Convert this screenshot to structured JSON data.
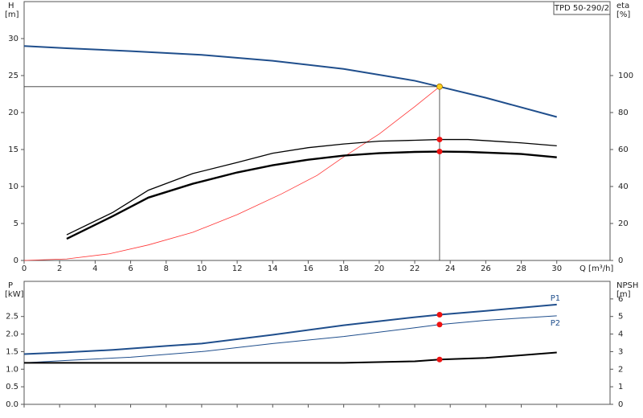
{
  "chart_data": [
    {
      "type": "line",
      "title": "TPD 50-290/2",
      "ylabel": "H",
      "yunit": "[m]",
      "y2label": "eta",
      "y2unit": "[%]",
      "xlabel": "Q [m³/h]",
      "x_tick_labels": true,
      "xlim": [
        0,
        33
      ],
      "xticks": [
        0,
        2,
        4,
        6,
        8,
        10,
        12,
        14,
        16,
        18,
        20,
        22,
        24,
        26,
        28,
        30
      ],
      "ylim": [
        0,
        35
      ],
      "yticks": [
        0,
        5,
        10,
        15,
        20,
        25,
        30
      ],
      "y2lim": [
        0,
        140
      ],
      "y2ticks": [
        0,
        20,
        40,
        60,
        80,
        100
      ],
      "duty_x": 23.4,
      "crosshair": true,
      "series": [
        {
          "color": "#1f4e8c",
          "width": 2,
          "x": [
            0,
            2.4,
            6,
            10,
            14,
            18,
            22,
            23.4,
            26,
            30
          ],
          "values": [
            29.0,
            28.7,
            28.3,
            27.8,
            27.0,
            25.9,
            24.3,
            23.5,
            22.0,
            19.4
          ],
          "duty_value": 23.5,
          "duty_color": "#ffd21f"
        },
        {
          "color": "#ff3333",
          "width": 0.8,
          "x": [
            0,
            2.4,
            4.8,
            7,
            9.5,
            12,
            14.5,
            16.5,
            18,
            20,
            22,
            23.4
          ],
          "values": [
            0,
            0.2,
            0.9,
            2.1,
            3.8,
            6.2,
            9.0,
            11.5,
            14.0,
            17.1,
            20.8,
            23.5
          ]
        },
        {
          "color": "#000000",
          "width": 1.3,
          "axis": "y2",
          "x": [
            2.4,
            5,
            7,
            9.5,
            12,
            14,
            16,
            18,
            20,
            22,
            23.4,
            25,
            28,
            30
          ],
          "values": [
            13.9,
            26,
            38,
            47,
            53,
            58,
            61,
            63,
            64.5,
            65,
            65.4,
            65.4,
            63.6,
            62
          ],
          "duty_value": 65.4,
          "duty_color": "#ee1111"
        },
        {
          "color": "#000000",
          "width": 2.4,
          "axis": "y2",
          "x": [
            2.4,
            5,
            7,
            9.5,
            12,
            14,
            16,
            18,
            20,
            22,
            23.4,
            25,
            28,
            30
          ],
          "values": [
            11.7,
            24,
            34,
            41.5,
            47.6,
            51.5,
            54.5,
            56.7,
            58,
            58.7,
            58.9,
            58.7,
            57.6,
            55.8
          ],
          "duty_value": 58.9,
          "duty_color": "#ee1111"
        }
      ]
    },
    {
      "type": "line",
      "ylabel": "P",
      "yunit": "[kW]",
      "y2label": "NPSH",
      "y2unit": "[m]",
      "x_tick_labels": false,
      "xlim": [
        0,
        33
      ],
      "xticks": [
        0,
        2,
        4,
        6,
        8,
        10,
        12,
        14,
        16,
        18,
        20,
        22,
        24,
        26,
        28,
        30
      ],
      "ylim": [
        0,
        3.5
      ],
      "yticks": [
        {
          "value": 0,
          "label": "0.0"
        },
        0.5,
        {
          "value": 1,
          "label": "1.0"
        },
        1.5,
        {
          "value": 2,
          "label": "2.0"
        },
        2.5
      ],
      "y2lim": [
        0,
        7
      ],
      "y2ticks": [
        0,
        1,
        2,
        3,
        4,
        5,
        6
      ],
      "duty_x": 23.4,
      "crosshair": false,
      "series": [
        {
          "name": "P1",
          "label_pos": "above",
          "color": "#1f4e8c",
          "width": 2,
          "x": [
            0,
            2.4,
            5,
            8,
            10,
            14,
            18,
            22,
            23.4,
            26,
            30
          ],
          "values": [
            1.43,
            1.48,
            1.55,
            1.66,
            1.73,
            1.98,
            2.25,
            2.48,
            2.55,
            2.66,
            2.84
          ],
          "duty_value": 2.55,
          "duty_color": "#ee1111"
        },
        {
          "name": "P2",
          "label_pos": "below",
          "color": "#1f4e8c",
          "width": 1,
          "x": [
            0,
            2.4,
            6,
            10,
            14,
            18,
            22,
            23.4,
            26,
            30
          ],
          "values": [
            1.18,
            1.25,
            1.34,
            1.5,
            1.73,
            1.93,
            2.18,
            2.27,
            2.39,
            2.52
          ],
          "duty_value": 2.27,
          "duty_color": "#ee1111"
        },
        {
          "color": "#000000",
          "width": 2,
          "axis": "y2",
          "x": [
            0,
            2.4,
            10,
            18,
            22,
            23.4,
            26,
            30
          ],
          "values": [
            2.36,
            2.36,
            2.36,
            2.36,
            2.45,
            2.55,
            2.64,
            2.95
          ],
          "duty_value": 2.55,
          "duty_color": "#ee1111"
        }
      ]
    }
  ]
}
